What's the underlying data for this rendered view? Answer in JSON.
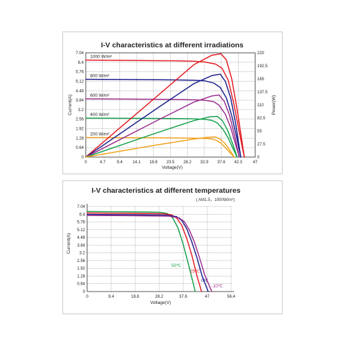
{
  "chart_data": [
    {
      "type": "line",
      "title": "I-V characteristics at different irradiations",
      "xlabel": "Voltage(V)",
      "ylabel": "Current(A)",
      "y2label": "Power(W)",
      "xticks": [
        "0",
        "4.7",
        "9.4",
        "14.1",
        "18.8",
        "23.5",
        "28.2",
        "32.9",
        "37.6",
        "42.3",
        "47"
      ],
      "yticks": [
        "0",
        "0.64",
        "1.28",
        "1.92",
        "2.56",
        "3.2",
        "3.84",
        "4.48",
        "5.12",
        "5.76",
        "6.4",
        "7.04"
      ],
      "y2ticks": [
        "0",
        "27.5",
        "55",
        "82.5",
        "110",
        "137.5",
        "165",
        "192.5",
        "220"
      ],
      "xlim": [
        0,
        47
      ],
      "ylim": [
        0,
        7.04
      ],
      "y2lim": [
        0,
        220
      ],
      "grid": true,
      "series": [
        {
          "name": "1000 W/m²",
          "kind": "iv",
          "color": "#e31b23",
          "x": [
            0,
            10,
            20,
            25,
            30,
            33,
            36,
            37.8,
            39.5,
            41,
            42.2,
            43.3,
            44
          ],
          "y": [
            6.55,
            6.53,
            6.51,
            6.5,
            6.47,
            6.42,
            6.28,
            6.0,
            5.2,
            3.7,
            2.2,
            0.8,
            0
          ]
        },
        {
          "name": "800 W/m²",
          "kind": "iv",
          "color": "#1b1f8c",
          "x": [
            0,
            10,
            20,
            25,
            30,
            33,
            35.5,
            37.3,
            39,
            40.5,
            41.8,
            43
          ],
          "y": [
            5.25,
            5.24,
            5.22,
            5.21,
            5.19,
            5.15,
            5.0,
            4.7,
            4.0,
            2.8,
            1.4,
            0
          ]
        },
        {
          "name": "600 W/m²",
          "kind": "iv",
          "color": "#9b2d8e",
          "x": [
            0,
            10,
            20,
            25,
            30,
            33,
            35.5,
            37,
            38.7,
            40.2,
            41.5,
            42.6
          ],
          "y": [
            3.93,
            3.92,
            3.9,
            3.89,
            3.87,
            3.84,
            3.74,
            3.5,
            2.9,
            2.0,
            0.9,
            0
          ]
        },
        {
          "name": "400 W/m²",
          "kind": "iv",
          "color": "#14a04b",
          "x": [
            0,
            10,
            20,
            25,
            30,
            33,
            35,
            36.5,
            38,
            39.5,
            40.8,
            42
          ],
          "y": [
            2.63,
            2.62,
            2.61,
            2.6,
            2.58,
            2.55,
            2.48,
            2.3,
            1.9,
            1.3,
            0.6,
            0
          ]
        },
        {
          "name": "200 W/m²",
          "kind": "iv",
          "color": "#f0a11c",
          "x": [
            0,
            10,
            20,
            25,
            30,
            33,
            35,
            36.3,
            37.6,
            38.8,
            40,
            41.2
          ],
          "y": [
            1.32,
            1.31,
            1.3,
            1.29,
            1.28,
            1.26,
            1.22,
            1.12,
            0.92,
            0.62,
            0.3,
            0
          ]
        },
        {
          "kind": "power",
          "color": "#e31b23",
          "x": [
            0,
            10,
            20,
            30,
            35,
            37.5,
            39,
            40.5,
            42,
            43.3,
            44
          ],
          "y": [
            0,
            65,
            130,
            195,
            215,
            218,
            205,
            165,
            100,
            35,
            0
          ]
        },
        {
          "kind": "power",
          "color": "#1b1f8c",
          "x": [
            0,
            10,
            20,
            30,
            35,
            37.3,
            38.7,
            40.2,
            41.6,
            43
          ],
          "y": [
            0,
            52,
            104,
            155,
            172,
            175,
            160,
            125,
            70,
            0
          ]
        },
        {
          "kind": "power",
          "color": "#9b2d8e",
          "x": [
            0,
            10,
            20,
            30,
            35,
            37,
            38.4,
            39.9,
            41.3,
            42.6
          ],
          "y": [
            0,
            39,
            78,
            116,
            129,
            131,
            118,
            88,
            45,
            0
          ]
        },
        {
          "kind": "power",
          "color": "#14a04b",
          "x": [
            0,
            10,
            20,
            30,
            34.5,
            36.5,
            37.9,
            39.4,
            40.8,
            42
          ],
          "y": [
            0,
            26,
            52,
            77,
            85,
            86,
            77,
            56,
            27,
            0
          ]
        },
        {
          "kind": "power",
          "color": "#f0a11c",
          "x": [
            0,
            10,
            20,
            30,
            34,
            36,
            37.3,
            38.7,
            40,
            41.2
          ],
          "y": [
            0,
            13,
            26,
            38,
            42,
            42.5,
            38,
            28,
            14,
            0
          ]
        }
      ]
    },
    {
      "type": "line",
      "title": "I-V characteristics at different temperatures",
      "subtitle": "( AM1.5，1000W/m²)",
      "xlabel": "Voltage(V)",
      "ylabel": "Current(A)",
      "xticks": [
        "0",
        "9.4",
        "18.8",
        "28.2",
        "37.6",
        "47",
        "56.4"
      ],
      "yticks": [
        "0",
        "0.64",
        "1.28",
        "1.92",
        "2.56",
        "3.2",
        "3.84",
        "4.48",
        "5.12",
        "5.76",
        "6.4",
        "7.04"
      ],
      "xlim": [
        0,
        56.4
      ],
      "ylim": [
        0,
        7.04
      ],
      "grid": true,
      "series": [
        {
          "name": "50℃",
          "color": "#14a04b",
          "x": [
            0,
            15,
            25,
            29,
            31.5,
            33.5,
            35.5,
            37.5,
            39.5,
            41.5,
            42.3
          ],
          "y": [
            6.62,
            6.6,
            6.58,
            6.55,
            6.45,
            6.1,
            5.3,
            4.0,
            2.4,
            0.7,
            0
          ]
        },
        {
          "name": "25℃",
          "color": "#e31b23",
          "x": [
            0,
            15,
            25,
            30,
            33,
            35,
            37,
            39,
            41,
            43,
            44.8
          ],
          "y": [
            6.5,
            6.48,
            6.46,
            6.44,
            6.35,
            6.1,
            5.5,
            4.4,
            3.0,
            1.3,
            0
          ]
        },
        {
          "name": "0℃",
          "color": "#1b1f8c",
          "x": [
            0,
            15,
            25,
            31,
            35,
            37,
            39,
            41,
            43,
            45,
            47.4
          ],
          "y": [
            6.38,
            6.36,
            6.34,
            6.32,
            6.2,
            5.9,
            5.2,
            4.1,
            2.8,
            1.3,
            0
          ]
        },
        {
          "name": "-10℃",
          "color": "#9b2d8e",
          "x": [
            0,
            15,
            25,
            32,
            36,
            38,
            40,
            42,
            44,
            46,
            48.8
          ],
          "y": [
            6.3,
            6.28,
            6.26,
            6.24,
            6.1,
            5.8,
            5.1,
            4.1,
            2.8,
            1.4,
            0
          ]
        }
      ]
    }
  ]
}
